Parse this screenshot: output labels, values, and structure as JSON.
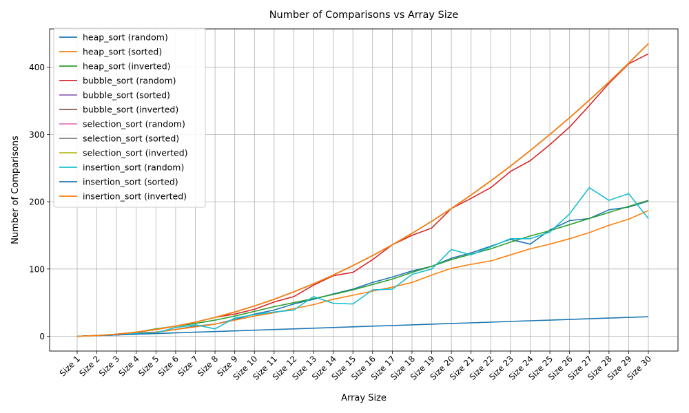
{
  "chart_data": {
    "type": "line",
    "title": "Number of Comparisons vs Array Size",
    "xlabel": "Array Size",
    "ylabel": "Number of Comparisons",
    "categories": [
      "Size 1",
      "Size 2",
      "Size 3",
      "Size 4",
      "Size 5",
      "Size 6",
      "Size 7",
      "Size 8",
      "Size 9",
      "Size 10",
      "Size 11",
      "Size 12",
      "Size 13",
      "Size 14",
      "Size 15",
      "Size 16",
      "Size 17",
      "Size 18",
      "Size 19",
      "Size 20",
      "Size 21",
      "Size 22",
      "Size 23",
      "Size 24",
      "Size 25",
      "Size 26",
      "Size 27",
      "Size 28",
      "Size 29",
      "Size 30"
    ],
    "ylim": [
      -22,
      457
    ],
    "yticks": [
      0,
      100,
      200,
      300,
      400
    ],
    "grid": true,
    "legend_position": "upper-left",
    "series": [
      {
        "name": "heap_sort (random)",
        "color": "#1f77b4",
        "values": [
          0,
          1,
          2,
          5,
          6,
          10,
          15,
          18,
          25,
          33,
          39,
          48,
          55,
          63,
          70,
          80,
          88,
          97,
          104,
          116,
          124,
          134,
          144,
          137,
          158,
          172,
          175,
          188,
          192,
          201
        ]
      },
      {
        "name": "heap_sort (sorted)",
        "color": "#ff7f0e",
        "values": [
          0,
          1,
          2,
          4,
          6,
          10,
          14,
          18,
          24,
          30,
          35,
          41,
          47,
          55,
          61,
          67,
          73,
          80,
          91,
          101,
          107,
          112,
          121,
          130,
          137,
          145,
          154,
          165,
          174,
          187
        ]
      },
      {
        "name": "heap_sort (inverted)",
        "color": "#2ca02c",
        "values": [
          0,
          1,
          3,
          6,
          11,
          15,
          19,
          24,
          30,
          37,
          44,
          50,
          56,
          62,
          69,
          77,
          85,
          95,
          104,
          114,
          122,
          130,
          140,
          149,
          157,
          166,
          175,
          184,
          193,
          202
        ]
      },
      {
        "name": "bubble_sort (random)",
        "color": "#d62728",
        "values": [
          0,
          1,
          3,
          6,
          10,
          15,
          21,
          28,
          33,
          40,
          51,
          59,
          76,
          90,
          95,
          114,
          136,
          150,
          161,
          190,
          205,
          221,
          245,
          261,
          285,
          311,
          343,
          376,
          405,
          420
        ]
      },
      {
        "name": "bubble_sort (sorted)",
        "color": "#9467bd",
        "values": [
          0,
          1,
          3,
          6,
          10,
          15,
          21,
          28,
          36,
          45,
          55,
          66,
          78,
          91,
          105,
          120,
          136,
          153,
          171,
          190,
          210,
          231,
          253,
          276,
          300,
          325,
          351,
          378,
          406,
          435
        ]
      },
      {
        "name": "bubble_sort (inverted)",
        "color": "#8c564b",
        "values": [
          0,
          1,
          3,
          6,
          10,
          15,
          21,
          28,
          36,
          45,
          55,
          66,
          78,
          91,
          105,
          120,
          136,
          153,
          171,
          190,
          210,
          231,
          253,
          276,
          300,
          325,
          351,
          378,
          406,
          435
        ]
      },
      {
        "name": "selection_sort (random)",
        "color": "#e377c2",
        "values": [
          0,
          1,
          3,
          6,
          10,
          15,
          21,
          28,
          36,
          45,
          55,
          66,
          78,
          91,
          105,
          120,
          136,
          153,
          171,
          190,
          210,
          231,
          253,
          276,
          300,
          325,
          351,
          378,
          406,
          435
        ]
      },
      {
        "name": "selection_sort (sorted)",
        "color": "#7f7f7f",
        "values": [
          0,
          1,
          3,
          6,
          10,
          15,
          21,
          28,
          36,
          45,
          55,
          66,
          78,
          91,
          105,
          120,
          136,
          153,
          171,
          190,
          210,
          231,
          253,
          276,
          300,
          325,
          351,
          378,
          406,
          435
        ]
      },
      {
        "name": "selection_sort (inverted)",
        "color": "#bcbd22",
        "values": [
          0,
          1,
          3,
          6,
          10,
          15,
          21,
          28,
          36,
          45,
          55,
          66,
          78,
          91,
          105,
          120,
          136,
          153,
          171,
          190,
          210,
          231,
          253,
          276,
          300,
          325,
          351,
          378,
          406,
          435
        ]
      },
      {
        "name": "insertion_sort (random)",
        "color": "#17becf",
        "values": [
          0,
          1,
          2,
          4,
          5,
          13,
          17,
          11,
          27,
          32,
          36,
          39,
          59,
          49,
          48,
          69,
          70,
          92,
          100,
          129,
          121,
          133,
          145,
          145,
          155,
          182,
          221,
          202,
          212,
          175
        ]
      },
      {
        "name": "insertion_sort (sorted)",
        "color": "#1f77b4",
        "values": [
          0,
          1,
          2,
          3,
          4,
          5,
          6,
          7,
          8,
          9,
          10,
          11,
          12,
          13,
          14,
          15,
          16,
          17,
          18,
          19,
          20,
          21,
          22,
          23,
          24,
          25,
          26,
          27,
          28,
          29
        ]
      },
      {
        "name": "insertion_sort (inverted)",
        "color": "#ff7f0e",
        "values": [
          0,
          1,
          3,
          6,
          10,
          15,
          21,
          28,
          36,
          45,
          55,
          66,
          78,
          91,
          105,
          120,
          136,
          153,
          171,
          190,
          210,
          231,
          253,
          276,
          300,
          325,
          351,
          378,
          406,
          435
        ]
      }
    ]
  }
}
